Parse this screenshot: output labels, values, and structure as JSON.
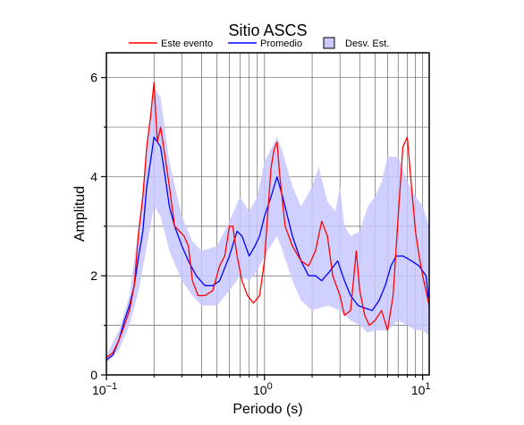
{
  "chart_data": {
    "type": "line",
    "title": "Sitio ASCS",
    "xlabel": "Periodo (s)",
    "ylabel": "Amplitud",
    "xscale": "log",
    "xlim": [
      0.1,
      11
    ],
    "ylim": [
      0,
      6.5
    ],
    "grid": "vertical log grid lines, horizontal lines at 1-unit steps",
    "legend_placement": "top, above plot",
    "x_ticks": [
      {
        "value": 0.1,
        "base": "10",
        "exp": "−1"
      },
      {
        "value": 1,
        "base": "10",
        "exp": "0"
      },
      {
        "value": 10,
        "base": "10",
        "exp": "1"
      }
    ],
    "y_ticks": [
      0,
      2,
      4,
      6
    ],
    "legend": [
      {
        "label": "Este evento",
        "kind": "line",
        "color": "#ff0000"
      },
      {
        "label": "Promedio",
        "kind": "line",
        "color": "#0000ff"
      },
      {
        "label": "Desv. Est.",
        "kind": "band",
        "color": "#c8c8ff"
      }
    ],
    "series": [
      {
        "name": "Este evento",
        "color": "#ff0000",
        "points": [
          [
            0.1,
            0.35
          ],
          [
            0.11,
            0.45
          ],
          [
            0.12,
            0.7
          ],
          [
            0.13,
            1.0
          ],
          [
            0.14,
            1.3
          ],
          [
            0.15,
            1.8
          ],
          [
            0.16,
            2.9
          ],
          [
            0.17,
            3.6
          ],
          [
            0.18,
            4.6
          ],
          [
            0.19,
            5.2
          ],
          [
            0.2,
            5.9
          ],
          [
            0.21,
            4.7
          ],
          [
            0.22,
            5.0
          ],
          [
            0.23,
            4.6
          ],
          [
            0.25,
            3.8
          ],
          [
            0.27,
            3.0
          ],
          [
            0.29,
            2.9
          ],
          [
            0.31,
            2.8
          ],
          [
            0.33,
            2.6
          ],
          [
            0.35,
            1.9
          ],
          [
            0.38,
            1.6
          ],
          [
            0.42,
            1.6
          ],
          [
            0.47,
            1.7
          ],
          [
            0.52,
            2.2
          ],
          [
            0.56,
            2.4
          ],
          [
            0.6,
            3.0
          ],
          [
            0.63,
            3.0
          ],
          [
            0.67,
            2.4
          ],
          [
            0.72,
            1.9
          ],
          [
            0.78,
            1.6
          ],
          [
            0.85,
            1.45
          ],
          [
            0.93,
            1.6
          ],
          [
            1.0,
            2.3
          ],
          [
            1.05,
            3.3
          ],
          [
            1.1,
            4.2
          ],
          [
            1.15,
            4.55
          ],
          [
            1.2,
            4.7
          ],
          [
            1.25,
            4.0
          ],
          [
            1.35,
            3.0
          ],
          [
            1.5,
            2.6
          ],
          [
            1.7,
            2.3
          ],
          [
            1.9,
            2.2
          ],
          [
            2.1,
            2.5
          ],
          [
            2.3,
            3.1
          ],
          [
            2.5,
            2.8
          ],
          [
            2.7,
            2.0
          ],
          [
            3.0,
            1.6
          ],
          [
            3.2,
            1.2
          ],
          [
            3.5,
            1.3
          ],
          [
            3.8,
            2.5
          ],
          [
            4.0,
            1.7
          ],
          [
            4.3,
            1.2
          ],
          [
            4.6,
            1.0
          ],
          [
            5.0,
            1.1
          ],
          [
            5.5,
            1.3
          ],
          [
            6.0,
            0.9
          ],
          [
            6.5,
            1.6
          ],
          [
            7.0,
            3.2
          ],
          [
            7.5,
            4.6
          ],
          [
            8.0,
            4.8
          ],
          [
            8.5,
            3.8
          ],
          [
            9.0,
            2.9
          ],
          [
            9.5,
            2.4
          ],
          [
            10.0,
            2.0
          ],
          [
            11.0,
            1.4
          ]
        ]
      },
      {
        "name": "Promedio",
        "color": "#0000ff",
        "points": [
          [
            0.1,
            0.3
          ],
          [
            0.11,
            0.4
          ],
          [
            0.12,
            0.7
          ],
          [
            0.13,
            1.1
          ],
          [
            0.14,
            1.4
          ],
          [
            0.15,
            1.8
          ],
          [
            0.16,
            2.4
          ],
          [
            0.17,
            2.9
          ],
          [
            0.18,
            3.8
          ],
          [
            0.19,
            4.3
          ],
          [
            0.2,
            4.8
          ],
          [
            0.21,
            4.7
          ],
          [
            0.22,
            4.6
          ],
          [
            0.23,
            4.2
          ],
          [
            0.25,
            3.4
          ],
          [
            0.27,
            3.0
          ],
          [
            0.3,
            2.6
          ],
          [
            0.33,
            2.3
          ],
          [
            0.37,
            2.0
          ],
          [
            0.42,
            1.8
          ],
          [
            0.47,
            1.8
          ],
          [
            0.52,
            1.9
          ],
          [
            0.6,
            2.4
          ],
          [
            0.67,
            2.9
          ],
          [
            0.72,
            2.8
          ],
          [
            0.8,
            2.4
          ],
          [
            0.87,
            2.6
          ],
          [
            0.93,
            2.8
          ],
          [
            1.0,
            3.2
          ],
          [
            1.1,
            3.6
          ],
          [
            1.2,
            4.0
          ],
          [
            1.3,
            3.6
          ],
          [
            1.5,
            2.8
          ],
          [
            1.7,
            2.3
          ],
          [
            1.9,
            2.0
          ],
          [
            2.1,
            2.0
          ],
          [
            2.3,
            1.9
          ],
          [
            2.6,
            2.1
          ],
          [
            2.9,
            2.3
          ],
          [
            3.2,
            1.9
          ],
          [
            3.5,
            1.6
          ],
          [
            3.9,
            1.4
          ],
          [
            4.3,
            1.35
          ],
          [
            4.8,
            1.3
          ],
          [
            5.3,
            1.5
          ],
          [
            5.8,
            1.8
          ],
          [
            6.3,
            2.2
          ],
          [
            6.8,
            2.4
          ],
          [
            7.5,
            2.4
          ],
          [
            8.5,
            2.3
          ],
          [
            9.5,
            2.2
          ],
          [
            10.5,
            2.0
          ],
          [
            11.0,
            1.4
          ]
        ]
      },
      {
        "name": "Desv. Est.",
        "color": "#c8c8ff",
        "band_upper": [
          [
            0.1,
            0.4
          ],
          [
            0.12,
            0.9
          ],
          [
            0.14,
            1.6
          ],
          [
            0.16,
            3.0
          ],
          [
            0.18,
            4.5
          ],
          [
            0.2,
            5.8
          ],
          [
            0.22,
            5.6
          ],
          [
            0.25,
            4.3
          ],
          [
            0.3,
            3.2
          ],
          [
            0.35,
            2.7
          ],
          [
            0.4,
            2.5
          ],
          [
            0.5,
            2.6
          ],
          [
            0.6,
            3.1
          ],
          [
            0.7,
            3.6
          ],
          [
            0.8,
            3.3
          ],
          [
            0.9,
            3.6
          ],
          [
            1.0,
            4.3
          ],
          [
            1.2,
            4.8
          ],
          [
            1.3,
            4.5
          ],
          [
            1.5,
            3.8
          ],
          [
            1.7,
            3.4
          ],
          [
            2.0,
            3.8
          ],
          [
            2.2,
            4.2
          ],
          [
            2.5,
            3.5
          ],
          [
            2.8,
            3.3
          ],
          [
            3.0,
            3.8
          ],
          [
            3.2,
            3.0
          ],
          [
            3.5,
            2.8
          ],
          [
            4.0,
            2.9
          ],
          [
            4.5,
            3.4
          ],
          [
            5.0,
            3.6
          ],
          [
            5.5,
            3.9
          ],
          [
            6.0,
            4.4
          ],
          [
            7.0,
            4.4
          ],
          [
            8.0,
            3.9
          ],
          [
            9.0,
            3.6
          ],
          [
            10.0,
            3.4
          ],
          [
            11.0,
            3.0
          ]
        ],
        "band_lower": [
          [
            0.1,
            0.25
          ],
          [
            0.12,
            0.5
          ],
          [
            0.14,
            1.0
          ],
          [
            0.16,
            1.7
          ],
          [
            0.18,
            2.6
          ],
          [
            0.2,
            3.4
          ],
          [
            0.22,
            3.2
          ],
          [
            0.25,
            2.5
          ],
          [
            0.3,
            1.9
          ],
          [
            0.35,
            1.6
          ],
          [
            0.4,
            1.4
          ],
          [
            0.5,
            1.4
          ],
          [
            0.6,
            1.7
          ],
          [
            0.7,
            2.0
          ],
          [
            0.8,
            1.9
          ],
          [
            0.9,
            2.1
          ],
          [
            1.0,
            2.4
          ],
          [
            1.2,
            2.8
          ],
          [
            1.3,
            2.5
          ],
          [
            1.5,
            1.9
          ],
          [
            1.7,
            1.5
          ],
          [
            2.0,
            1.3
          ],
          [
            2.5,
            1.4
          ],
          [
            3.0,
            1.3
          ],
          [
            3.5,
            1.1
          ],
          [
            4.0,
            1.0
          ],
          [
            4.5,
            0.85
          ],
          [
            5.0,
            0.9
          ],
          [
            6.0,
            0.9
          ],
          [
            7.0,
            1.1
          ],
          [
            8.0,
            1.0
          ],
          [
            9.0,
            0.9
          ],
          [
            10.0,
            0.9
          ],
          [
            11.0,
            0.8
          ]
        ]
      }
    ]
  }
}
